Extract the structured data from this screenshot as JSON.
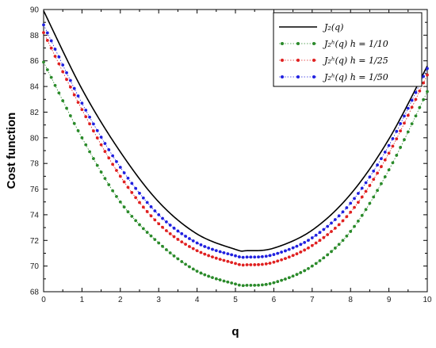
{
  "chart_data": {
    "type": "line",
    "xlabel": "q",
    "ylabel": "Cost function",
    "xlim": [
      0,
      10
    ],
    "ylim": [
      68,
      90
    ],
    "x_ticks": [
      "0",
      "1",
      "2",
      "3",
      "4",
      "5",
      "6",
      "7",
      "8",
      "9",
      "10"
    ],
    "y_ticks": [
      "68",
      "70",
      "72",
      "74",
      "76",
      "78",
      "80",
      "82",
      "84",
      "86",
      "88",
      "90"
    ],
    "grid": false,
    "legend_position": "top-right",
    "series": [
      {
        "name": "J₂(q)",
        "color": "#000000",
        "style": "solid",
        "x": [
          0,
          1,
          2,
          3,
          4,
          5,
          5.3,
          6,
          7,
          8,
          9,
          10
        ],
        "y": [
          89.9,
          83.8,
          78.9,
          75.0,
          72.5,
          71.3,
          71.2,
          71.4,
          72.8,
          75.6,
          79.9,
          85.6
        ]
      },
      {
        "name": "J₂ʰ(q)  h = 1/10",
        "color": "#2a8a2a",
        "style": "dotted-markers",
        "x": [
          0,
          1,
          2,
          3,
          4,
          5,
          5.3,
          6,
          7,
          8,
          9,
          10
        ],
        "y": [
          85.9,
          80.0,
          75.0,
          71.8,
          69.6,
          68.6,
          68.5,
          68.7,
          70.0,
          72.7,
          77.5,
          83.6
        ]
      },
      {
        "name": "J₂ʰ(q)  h = 1/25",
        "color": "#e02020",
        "style": "dotted-markers",
        "x": [
          0,
          1,
          2,
          3,
          4,
          5,
          5.3,
          6,
          7,
          8,
          9,
          10
        ],
        "y": [
          88.2,
          82.2,
          77.0,
          73.3,
          71.2,
          70.2,
          70.1,
          70.3,
          71.6,
          74.2,
          78.8,
          84.9
        ]
      },
      {
        "name": "J₂ʰ(q)  h = 1/50",
        "color": "#2020e0",
        "style": "dotted-markers",
        "x": [
          0,
          1,
          2,
          3,
          4,
          5,
          5.3,
          6,
          7,
          8,
          9,
          10
        ],
        "y": [
          88.8,
          82.7,
          77.7,
          74.0,
          71.8,
          70.8,
          70.7,
          70.9,
          72.2,
          74.9,
          79.4,
          85.4
        ]
      }
    ]
  }
}
